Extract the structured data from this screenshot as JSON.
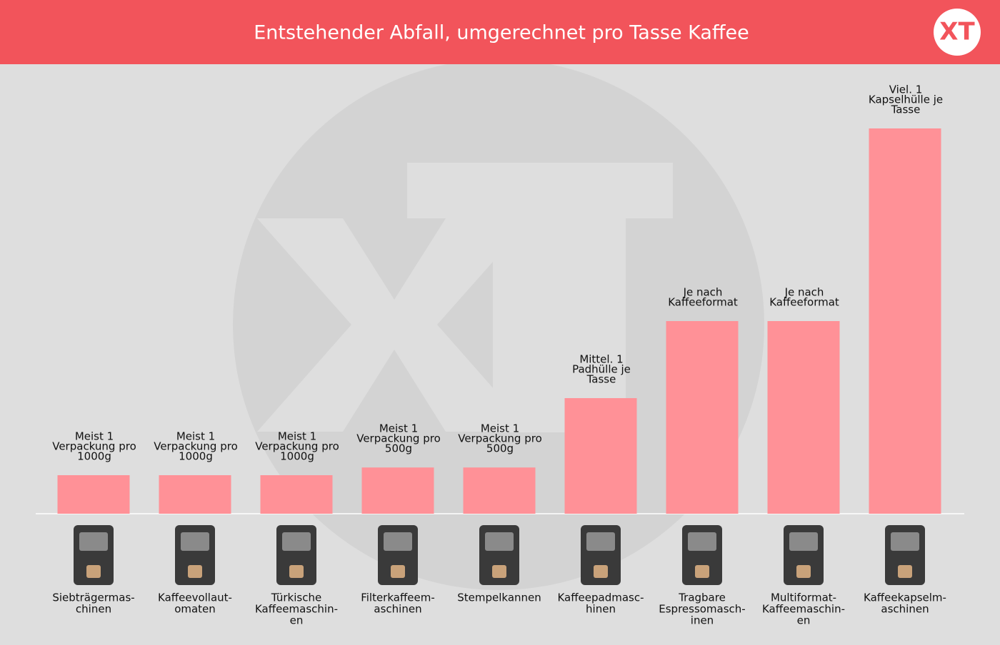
{
  "chart_data": {
    "type": "bar",
    "title": "Entstehender Abfall, umgerechnet pro Tasse Kaffee",
    "categories": [
      [
        "Siebträgermas-",
        "chinen"
      ],
      [
        "Kaffeevollaut-",
        "omaten"
      ],
      [
        "Türkische",
        "Kaffeemaschin-",
        "en"
      ],
      [
        "Filterkaffeem-",
        "aschinen"
      ],
      [
        "Stempelkannen"
      ],
      [
        "Kaffeepadmasc-",
        "hinen"
      ],
      [
        "Tragbare",
        "Espressomasch-",
        "inen"
      ],
      [
        "Multiformat-",
        "Kaffeemaschin-",
        "en"
      ],
      [
        "Kaffeekapselm-",
        "aschinen"
      ]
    ],
    "values": [
      1,
      1,
      1,
      1.2,
      1.2,
      3,
      5,
      5,
      10
    ],
    "annotations": [
      [
        "Meist 1",
        "Verpackung pro",
        "1000g"
      ],
      [
        "Meist 1",
        "Verpackung pro",
        "1000g"
      ],
      [
        "Meist 1",
        "Verpackung pro",
        "1000g"
      ],
      [
        "Meist 1",
        "Verpackung pro",
        "500g"
      ],
      [
        "Meist 1",
        "Verpackung pro",
        "500g"
      ],
      [
        "Mittel. 1",
        "Padhülle je",
        "Tasse"
      ],
      [
        "Je nach",
        "Kaffeeformat"
      ],
      [
        "Je nach",
        "Kaffeeformat"
      ],
      [
        "Viel. 1",
        "Kapselhülle je",
        "Tasse"
      ]
    ],
    "color": "#ff9197",
    "ylim": [
      0,
      11
    ]
  }
}
